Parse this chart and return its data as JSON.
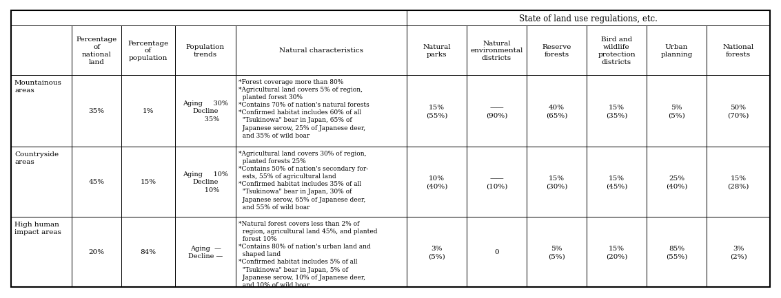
{
  "bg_color": "#ffffff",
  "header_top_left_label": "",
  "header_state_label": "State of land use regulations, etc.",
  "col_headers": [
    "",
    "Percentage\nof\nnational\nland",
    "Percentage\nof\npopulation",
    "Population\ntrends",
    "Natural characteristics",
    "Natural\nparks",
    "Natural\nenvironmental\ndistricts",
    "Reserve\nforests",
    "Bird and\nwildlife\nprotection\ndistricts",
    "Urban\nplanning",
    "National\nforests"
  ],
  "rows": [
    {
      "category": "Mountainous\nareas",
      "pct_land": "35%",
      "pct_pop": "1%",
      "pop_trends": "Aging     30%\nDecline\n      35%",
      "natural_chars": "*Forest coverage more than 80%\n*Agricultural land covers 5% of region,\n  planted forest 30%\n*Contains 70% of nation's natural forests\n*Confirmed habitat includes 60% of all\n  \"Tsukinowa\" bear in Japan, 65% of\n  Japanese serow, 25% of Japanese deer,\n  and 35% of wild boar",
      "natural_parks": "15%\n(55%)",
      "nat_env_dist": "——\n(90%)",
      "reserve_forests": "40%\n(65%)",
      "bird_wildlife": "15%\n(35%)",
      "urban_planning": "5%\n(5%)",
      "national_forests": "50%\n(70%)"
    },
    {
      "category": "Countryside\nareas",
      "pct_land": "45%",
      "pct_pop": "15%",
      "pop_trends": "Aging     10%\nDecline\n      10%",
      "natural_chars": "*Agricultural land covers 30% of region,\n  planted forests 25%\n*Contains 50% of nation's secondary for-\n  ests, 55% of agricultural land\n*Confirmed habitat includes 35% of all\n  \"Tsukinowa\" bear in Japan, 30% of\n  Japanese serow, 65% of Japanese deer,\n  and 55% of wild boar",
      "natural_parks": "10%\n(40%)",
      "nat_env_dist": "——\n(10%)",
      "reserve_forests": "15%\n(30%)",
      "bird_wildlife": "15%\n(45%)",
      "urban_planning": "25%\n(40%)",
      "national_forests": "15%\n(28%)"
    },
    {
      "category": "High human\nimpact areas",
      "pct_land": "20%",
      "pct_pop": "84%",
      "pop_trends": "Aging  —\nDecline —",
      "natural_chars": "*Natural forest covers less than 2% of\n  region, agricultural land 45%, and planted\n  forest 10%\n*Contains 80% of nation's urban land and\n  shaped land\n*Confirmed habitat includes 5% of all\n  \"Tsukinowa\" bear in Japan, 5% of\n  Japanese serow, 10% of Japanese deer,\n  and 10% of wild boar",
      "natural_parks": "3%\n(5%)",
      "nat_env_dist": "0",
      "reserve_forests": "5%\n(5%)",
      "bird_wildlife": "15%\n(20%)",
      "urban_planning": "85%\n(55%)",
      "national_forests": "3%\n(2%)"
    }
  ]
}
